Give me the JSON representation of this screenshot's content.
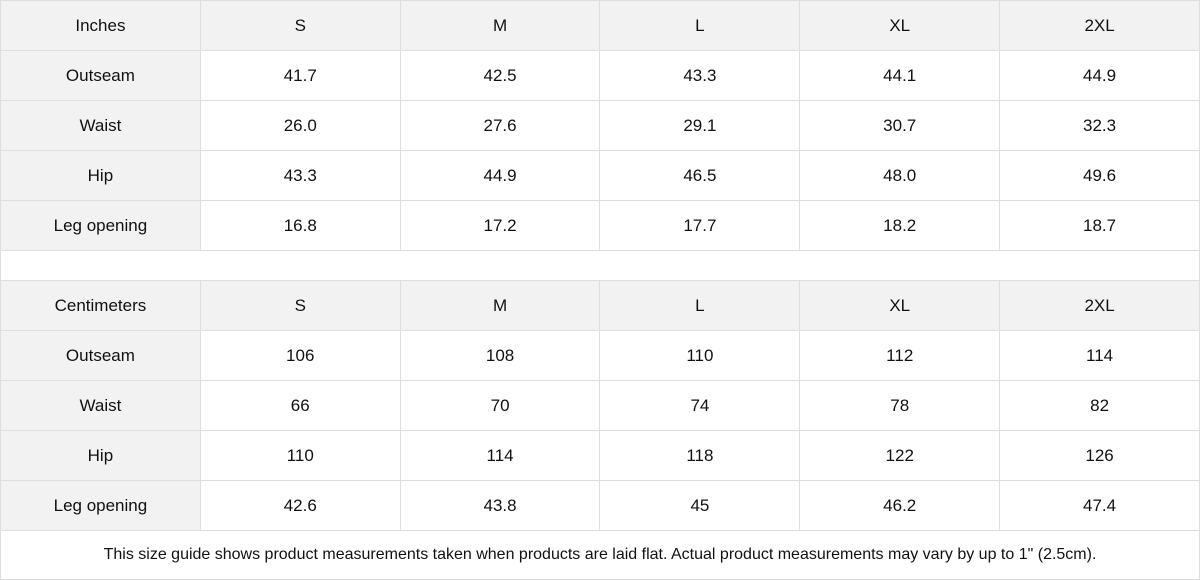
{
  "tables": [
    {
      "unit_label": "Inches",
      "sizes": [
        "S",
        "M",
        "L",
        "XL",
        "2XL"
      ],
      "rows": [
        {
          "label": "Outseam",
          "values": [
            "41.7",
            "42.5",
            "43.3",
            "44.1",
            "44.9"
          ]
        },
        {
          "label": "Waist",
          "values": [
            "26.0",
            "27.6",
            "29.1",
            "30.7",
            "32.3"
          ]
        },
        {
          "label": "Hip",
          "values": [
            "43.3",
            "44.9",
            "46.5",
            "48.0",
            "49.6"
          ]
        },
        {
          "label": "Leg opening",
          "values": [
            "16.8",
            "17.2",
            "17.7",
            "18.2",
            "18.7"
          ]
        }
      ]
    },
    {
      "unit_label": "Centimeters",
      "sizes": [
        "S",
        "M",
        "L",
        "XL",
        "2XL"
      ],
      "rows": [
        {
          "label": "Outseam",
          "values": [
            "106",
            "108",
            "110",
            "112",
            "114"
          ]
        },
        {
          "label": "Waist",
          "values": [
            "66",
            "70",
            "74",
            "78",
            "82"
          ]
        },
        {
          "label": "Hip",
          "values": [
            "110",
            "114",
            "118",
            "122",
            "126"
          ]
        },
        {
          "label": "Leg opening",
          "values": [
            "42.6",
            "43.8",
            "45",
            "46.2",
            "47.4"
          ]
        }
      ]
    }
  ],
  "note": "This size guide shows product measurements taken when products are laid flat.  Actual product measurements may vary by up to 1\" (2.5cm).",
  "colors": {
    "header_bg": "#f2f2f2",
    "border": "#dedede"
  }
}
